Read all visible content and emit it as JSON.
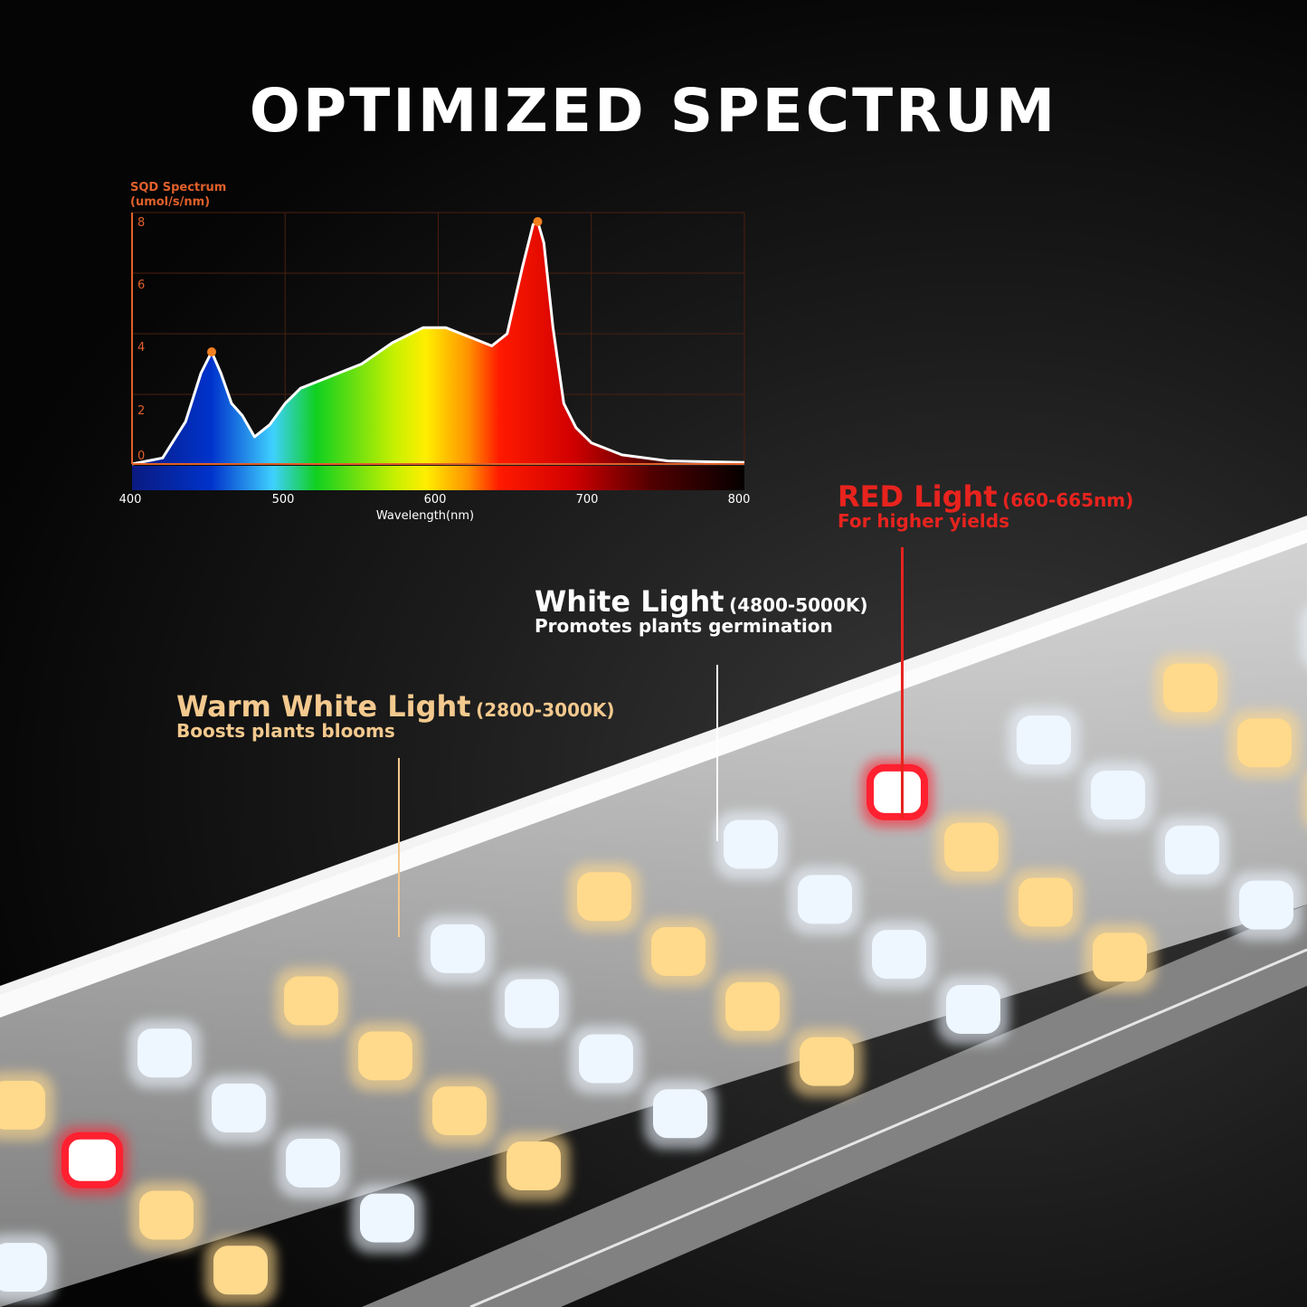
{
  "title": "OPTIMIZED SPECTRUM",
  "chart_data": {
    "type": "area",
    "ylabel": [
      "SQD Spectrum",
      "(umol/s/nm)"
    ],
    "xlabel": "Wavelength(nm)",
    "xlim": [
      400,
      800
    ],
    "ylim": [
      0,
      8
    ],
    "x_ticks": [
      "400",
      "500",
      "600",
      "700",
      "800"
    ],
    "y_ticks": [
      "0",
      "2",
      "4",
      "6",
      "8"
    ],
    "grid": true,
    "x": [
      400,
      420,
      435,
      445,
      452,
      458,
      465,
      472,
      480,
      490,
      500,
      510,
      530,
      550,
      570,
      590,
      605,
      620,
      635,
      645,
      655,
      662,
      665,
      669,
      675,
      682,
      690,
      700,
      720,
      750,
      800
    ],
    "y": [
      0,
      0.2,
      1.4,
      3.0,
      3.7,
      3.0,
      2.0,
      1.6,
      0.9,
      1.3,
      2.0,
      2.5,
      2.9,
      3.3,
      4.0,
      4.5,
      4.5,
      4.2,
      3.9,
      4.3,
      6.5,
      7.9,
      8.0,
      7.3,
      4.5,
      2.0,
      1.2,
      0.7,
      0.3,
      0.1,
      0.05
    ],
    "highlighted_peaks": [
      {
        "x": 452,
        "y": 3.7
      },
      {
        "x": 665,
        "y": 8.0
      }
    ],
    "colors": {
      "axis": "#e0602a",
      "curve": "#ffffff",
      "peak_marker": "#f08020"
    }
  },
  "callouts": {
    "red": {
      "heading": "RED Light",
      "range": "(660-665nm)",
      "sub": "For higher yields",
      "color": "#e8231e"
    },
    "white": {
      "heading": "White Light",
      "range": "(4800-5000K)",
      "sub": "Promotes plants germination",
      "color": "#ffffff"
    },
    "warm": {
      "heading": "Warm White Light",
      "range": "(2800-3000K)",
      "sub": "Boosts plants blooms",
      "color": "#f3c98e"
    }
  }
}
